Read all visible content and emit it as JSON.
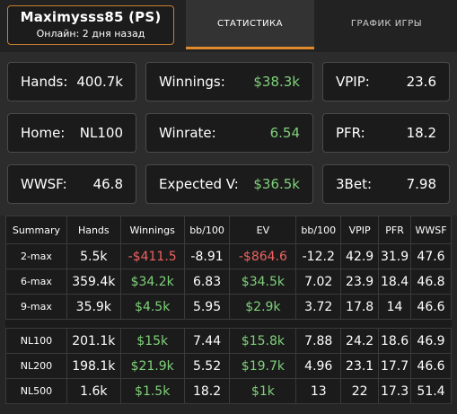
{
  "profile": {
    "name": "Maximysss85 (PS)",
    "online": "Онлайн: 2 дня назад"
  },
  "tabs": {
    "stats": "СТАТИСТИКА",
    "graph": "ГРАФИК ИГРЫ"
  },
  "cards": [
    {
      "label": "Hands:",
      "value": "400.7k",
      "color": "#ffffff"
    },
    {
      "label": "Winnings:",
      "value": "$38.3k",
      "color": "#7fd17a"
    },
    {
      "label": "VPIP:",
      "value": "23.6",
      "color": "#ffffff"
    },
    {
      "label": "Home:",
      "value": "NL100",
      "color": "#ffffff"
    },
    {
      "label": "Winrate:",
      "value": "6.54",
      "color": "#7fd17a"
    },
    {
      "label": "PFR:",
      "value": "18.2",
      "color": "#ffffff"
    },
    {
      "label": "WWSF:",
      "value": "46.8",
      "color": "#ffffff"
    },
    {
      "label": "Expected V:",
      "value": "$36.5k",
      "color": "#7fd17a"
    },
    {
      "label": "3Bet:",
      "value": "7.98",
      "color": "#ffffff"
    }
  ],
  "table": {
    "headers": [
      "Summary",
      "Hands",
      "Winnings",
      "bb/100",
      "EV",
      "bb/100",
      "VPIP",
      "PFR",
      "WWSF"
    ],
    "rows": [
      {
        "cells": [
          "2-max",
          "5.5k",
          "-$411.5",
          "-8.91",
          "-$864.6",
          "-12.2",
          "42.9",
          "31.9",
          "47.6"
        ],
        "tones": [
          "",
          "",
          "red",
          "",
          "red",
          "",
          "",
          "",
          ""
        ]
      },
      {
        "cells": [
          "6-max",
          "359.4k",
          "$34.2k",
          "6.83",
          "$34.5k",
          "7.02",
          "23.9",
          "18.4",
          "46.8"
        ],
        "tones": [
          "",
          "",
          "green",
          "",
          "green",
          "",
          "",
          "",
          ""
        ]
      },
      {
        "cells": [
          "9-max",
          "35.9k",
          "$4.5k",
          "5.95",
          "$2.9k",
          "3.72",
          "17.8",
          "14",
          "46.6"
        ],
        "tones": [
          "",
          "",
          "green",
          "",
          "green",
          "",
          "",
          "",
          ""
        ]
      },
      {
        "cells": [
          "NL100",
          "201.1k",
          "$15k",
          "7.44",
          "$15.8k",
          "7.88",
          "24.2",
          "18.6",
          "46.9"
        ],
        "tones": [
          "",
          "",
          "green",
          "",
          "green",
          "",
          "",
          "",
          ""
        ]
      },
      {
        "cells": [
          "NL200",
          "198.1k",
          "$21.9k",
          "5.52",
          "$19.7k",
          "4.96",
          "23.1",
          "17.7",
          "46.6"
        ],
        "tones": [
          "",
          "",
          "green",
          "",
          "green",
          "",
          "",
          "",
          ""
        ]
      },
      {
        "cells": [
          "NL500",
          "1.6k",
          "$1.5k",
          "18.2",
          "$1k",
          "13",
          "22",
          "17.3",
          "51.4"
        ],
        "tones": [
          "",
          "",
          "green",
          "",
          "green",
          "",
          "",
          "",
          ""
        ]
      }
    ]
  }
}
